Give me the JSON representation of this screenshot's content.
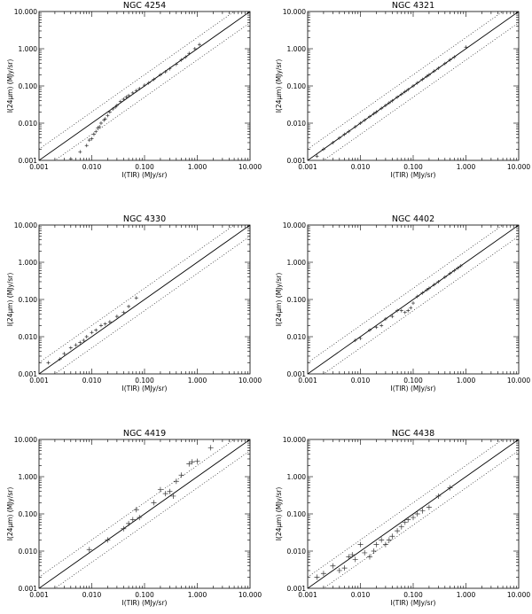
{
  "figure": {
    "xlabel": "I(TIR) (MJy/sr)",
    "ylabel": "I(24μm) (MJy/sr)",
    "tick_labels": [
      "0.001",
      "0.010",
      "0.100",
      "1.000",
      "10.000"
    ]
  },
  "chart_data": [
    {
      "type": "scatter",
      "title": "NGC 4254",
      "xlabel": "I(TIR) (MJy/sr)",
      "ylabel": "I(24μm) (MJy/sr)",
      "xscale": "log",
      "yscale": "log",
      "xlim": [
        0.001,
        10
      ],
      "ylim": [
        0.001,
        10
      ],
      "xticks": [
        "0.001",
        "0.010",
        "0.100",
        "1.000",
        "10.000"
      ],
      "yticks": [
        "0.001",
        "0.010",
        "0.100",
        "1.000",
        "10.000"
      ],
      "reference_lines": [
        {
          "style": "solid",
          "relation": "y = x"
        },
        {
          "style": "dotted",
          "relation": "y = 2x"
        },
        {
          "style": "dotted",
          "relation": "y = 0.5x"
        }
      ],
      "series": [
        {
          "marker": "plus",
          "x": [
            0.004,
            0.006,
            0.008,
            0.009,
            0.01,
            0.011,
            0.012,
            0.013,
            0.014,
            0.015,
            0.017,
            0.018,
            0.02,
            0.022,
            0.025,
            0.028,
            0.03,
            0.035,
            0.04,
            0.045,
            0.05,
            0.06,
            0.07,
            0.08,
            0.1,
            0.12,
            0.15,
            0.2,
            0.25,
            0.3,
            0.4,
            0.5,
            0.6,
            0.7,
            0.9,
            1.1
          ],
          "y": [
            0.0011,
            0.0017,
            0.0025,
            0.0035,
            0.0038,
            0.005,
            0.006,
            0.0075,
            0.008,
            0.01,
            0.012,
            0.013,
            0.016,
            0.02,
            0.024,
            0.027,
            0.03,
            0.038,
            0.044,
            0.05,
            0.055,
            0.065,
            0.075,
            0.085,
            0.105,
            0.12,
            0.15,
            0.2,
            0.24,
            0.29,
            0.38,
            0.5,
            0.6,
            0.75,
            1.0,
            1.3
          ]
        }
      ]
    },
    {
      "type": "scatter",
      "title": "NGC 4321",
      "xlabel": "I(TIR) (MJy/sr)",
      "ylabel": "I(24μm) (MJy/sr)",
      "xscale": "log",
      "yscale": "log",
      "xlim": [
        0.001,
        10
      ],
      "ylim": [
        0.001,
        10
      ],
      "xticks": [
        "0.001",
        "0.010",
        "0.100",
        "1.000",
        "10.000"
      ],
      "yticks": [
        "0.001",
        "0.010",
        "0.100",
        "1.000",
        "10.000"
      ],
      "reference_lines": [
        {
          "style": "solid",
          "relation": "y = x"
        },
        {
          "style": "dotted",
          "relation": "y = 2x"
        },
        {
          "style": "dotted",
          "relation": "y = 0.5x"
        }
      ],
      "series": [
        {
          "marker": "plus",
          "x": [
            0.0015,
            0.002,
            0.003,
            0.004,
            0.005,
            0.006,
            0.008,
            0.01,
            0.012,
            0.015,
            0.018,
            0.02,
            0.025,
            0.03,
            0.035,
            0.04,
            0.05,
            0.06,
            0.07,
            0.08,
            0.1,
            0.12,
            0.15,
            0.18,
            0.2,
            0.25,
            0.3,
            0.4,
            0.5,
            0.6,
            1.0
          ],
          "y": [
            0.0013,
            0.002,
            0.003,
            0.004,
            0.005,
            0.006,
            0.008,
            0.01,
            0.012,
            0.015,
            0.018,
            0.02,
            0.025,
            0.03,
            0.035,
            0.04,
            0.05,
            0.06,
            0.07,
            0.08,
            0.1,
            0.12,
            0.15,
            0.18,
            0.2,
            0.25,
            0.3,
            0.4,
            0.5,
            0.6,
            1.1
          ]
        }
      ]
    },
    {
      "type": "scatter",
      "title": "NGC 4330",
      "xlabel": "I(TIR) (MJy/sr)",
      "ylabel": "I(24μm) (MJy/sr)",
      "xscale": "log",
      "yscale": "log",
      "xlim": [
        0.001,
        10
      ],
      "ylim": [
        0.001,
        10
      ],
      "xticks": [
        "0.001",
        "0.010",
        "0.100",
        "1.000",
        "10.000"
      ],
      "yticks": [
        "0.001",
        "0.010",
        "0.100",
        "1.000",
        "10.000"
      ],
      "reference_lines": [
        {
          "style": "solid",
          "relation": "y = x"
        },
        {
          "style": "dotted",
          "relation": "y = 2x"
        },
        {
          "style": "dotted",
          "relation": "y = 0.5x"
        }
      ],
      "series": [
        {
          "marker": "plus",
          "x": [
            0.0015,
            0.0025,
            0.003,
            0.004,
            0.005,
            0.006,
            0.007,
            0.008,
            0.01,
            0.012,
            0.015,
            0.018,
            0.022,
            0.03,
            0.04,
            0.05,
            0.07
          ],
          "y": [
            0.002,
            0.0025,
            0.0035,
            0.005,
            0.006,
            0.007,
            0.008,
            0.01,
            0.013,
            0.015,
            0.02,
            0.022,
            0.025,
            0.035,
            0.045,
            0.065,
            0.11
          ]
        }
      ]
    },
    {
      "type": "scatter",
      "title": "NGC 4402",
      "xlabel": "I(TIR) (MJy/sr)",
      "ylabel": "I(24μm) (MJy/sr)",
      "xscale": "log",
      "yscale": "log",
      "xlim": [
        0.001,
        10
      ],
      "ylim": [
        0.001,
        10
      ],
      "xticks": [
        "0.001",
        "0.010",
        "0.100",
        "1.000",
        "10.000"
      ],
      "yticks": [
        "0.001",
        "0.010",
        "0.100",
        "1.000",
        "10.000"
      ],
      "reference_lines": [
        {
          "style": "solid",
          "relation": "y = x"
        },
        {
          "style": "dotted",
          "relation": "y = 2x"
        },
        {
          "style": "dotted",
          "relation": "y = 0.5x"
        }
      ],
      "series": [
        {
          "marker": "plus",
          "x": [
            0.008,
            0.01,
            0.015,
            0.02,
            0.025,
            0.03,
            0.04,
            0.05,
            0.06,
            0.07,
            0.08,
            0.09,
            0.1,
            0.12,
            0.15,
            0.18,
            0.2,
            0.25,
            0.3,
            0.4,
            0.5,
            0.6,
            0.7,
            0.8
          ],
          "y": [
            0.008,
            0.009,
            0.015,
            0.018,
            0.02,
            0.03,
            0.035,
            0.05,
            0.05,
            0.045,
            0.05,
            0.06,
            0.08,
            0.12,
            0.15,
            0.18,
            0.2,
            0.25,
            0.3,
            0.4,
            0.5,
            0.6,
            0.7,
            0.8
          ]
        }
      ]
    },
    {
      "type": "scatter",
      "title": "NGC 4419",
      "xlabel": "I(TIR) (MJy/sr)",
      "ylabel": "I(24μm) (MJy/sr)",
      "xscale": "log",
      "yscale": "log",
      "xlim": [
        0.001,
        10
      ],
      "ylim": [
        0.001,
        10
      ],
      "xticks": [
        "0.001",
        "0.010",
        "0.100",
        "1.000",
        "10.000"
      ],
      "yticks": [
        "0.001",
        "0.010",
        "0.100",
        "1.000",
        "10.000"
      ],
      "reference_lines": [
        {
          "style": "solid",
          "relation": "y = x"
        },
        {
          "style": "dotted",
          "relation": "y = 2x"
        },
        {
          "style": "dotted",
          "relation": "y = 0.5x"
        }
      ],
      "series": [
        {
          "marker": "plus",
          "x": [
            0.009,
            0.02,
            0.04,
            0.05,
            0.06,
            0.07,
            0.08,
            0.15,
            0.2,
            0.25,
            0.3,
            0.35,
            0.4,
            0.5,
            0.7,
            0.8,
            1.0,
            1.8
          ],
          "y": [
            0.011,
            0.02,
            0.04,
            0.055,
            0.07,
            0.13,
            0.08,
            0.2,
            0.45,
            0.35,
            0.4,
            0.3,
            0.75,
            1.1,
            2.2,
            2.5,
            2.6,
            6.0
          ]
        }
      ]
    },
    {
      "type": "scatter",
      "title": "NGC 4438",
      "xlabel": "I(TIR) (MJy/sr)",
      "ylabel": "I(24μm) (MJy/sr)",
      "xscale": "log",
      "yscale": "log",
      "xlim": [
        0.001,
        10
      ],
      "ylim": [
        0.001,
        10
      ],
      "xticks": [
        "0.001",
        "0.010",
        "0.100",
        "1.000",
        "10.000"
      ],
      "yticks": [
        "0.001",
        "0.010",
        "0.100",
        "1.000",
        "10.000"
      ],
      "reference_lines": [
        {
          "style": "solid",
          "relation": "y = x"
        },
        {
          "style": "dotted",
          "relation": "y = 2x"
        },
        {
          "style": "dotted",
          "relation": "y = 0.5x"
        }
      ],
      "series": [
        {
          "marker": "plus",
          "x": [
            0.0015,
            0.002,
            0.003,
            0.004,
            0.005,
            0.006,
            0.007,
            0.008,
            0.01,
            0.012,
            0.015,
            0.018,
            0.02,
            0.025,
            0.03,
            0.035,
            0.04,
            0.05,
            0.06,
            0.07,
            0.08,
            0.1,
            0.12,
            0.15,
            0.2,
            0.3,
            0.5
          ],
          "y": [
            0.002,
            0.0025,
            0.004,
            0.003,
            0.0035,
            0.007,
            0.008,
            0.006,
            0.015,
            0.009,
            0.007,
            0.01,
            0.015,
            0.02,
            0.015,
            0.02,
            0.025,
            0.035,
            0.045,
            0.06,
            0.07,
            0.08,
            0.1,
            0.12,
            0.15,
            0.3,
            0.5
          ]
        }
      ]
    }
  ]
}
